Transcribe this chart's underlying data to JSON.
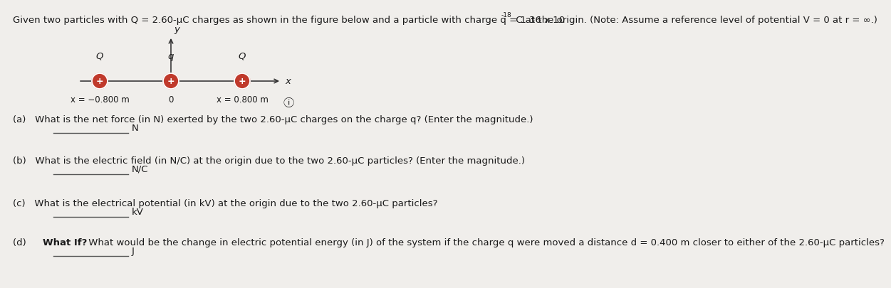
{
  "bg_color": "#f0eeeb",
  "charge_color": "#c0392b",
  "charge_outline_color": "#8b1a1a",
  "font_color": "#1a1a1a",
  "line_color": "#2a2a2a",
  "answer_line_color": "#555555",
  "highlight_color": "#1a3a8a",
  "title_part1": "Given two particles with Q = 2.60-μC charges as shown in the figure below and a particle with charge q = 1.36 x 10",
  "title_superscript": "-18",
  "title_part2": " C at the origin. (Note: Assume a reference level of potential V = 0 at r = ∞.)",
  "diag_left_label": "Q",
  "diag_center_label": "q",
  "diag_right_label": "Q",
  "diag_left_pos": "x = −0.800 m",
  "diag_zero": "0",
  "diag_right_pos": "x = 0.800 m",
  "q_a_text": "(a)   What is the net force (in N) exerted by the two 2.60-μC charges on the charge q? (Enter the magnitude.)",
  "q_a_unit": "N",
  "q_b_text": "(b)   What is the electric field (in N/C) at the origin due to the two 2.60-μC particles? (Enter the magnitude.)",
  "q_b_unit": "N/C",
  "q_c_text": "(c)   What is the electrical potential (in kV) at the origin due to the two 2.60-μC particles?",
  "q_c_unit": "kV",
  "q_d_prefix": "(d)   ",
  "q_d_bold": "What If?",
  "q_d_rest": " What would be the change in electric potential energy (in J) of the system if the charge q were moved a distance d = 0.400 m closer to either of the 2.60-μC particles?",
  "q_d_unit": "J"
}
